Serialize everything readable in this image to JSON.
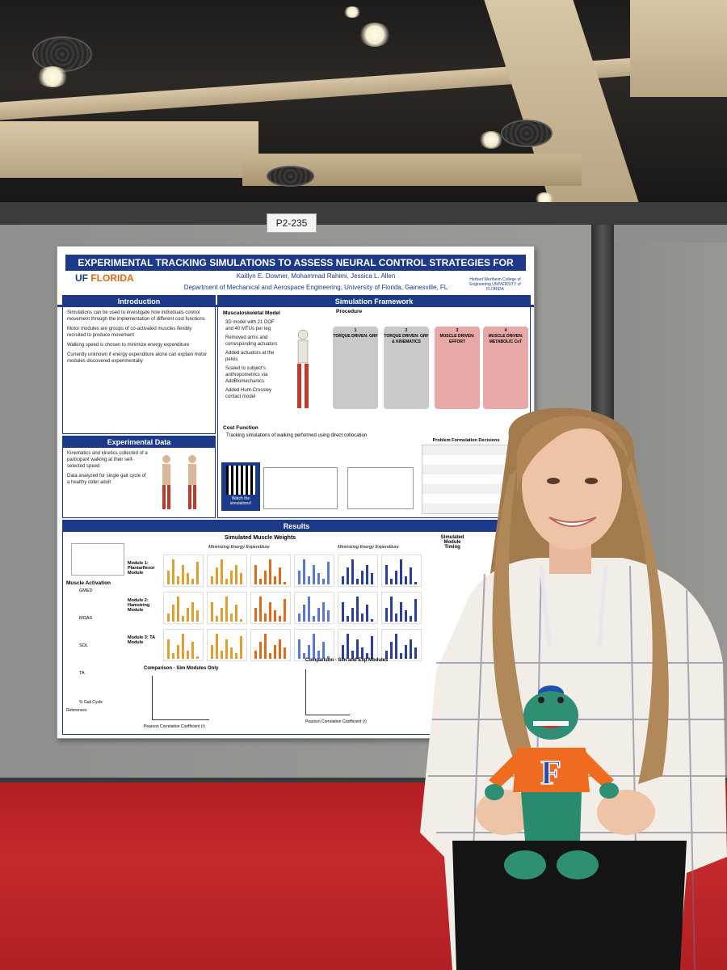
{
  "booth": {
    "number": "P2-235"
  },
  "poster": {
    "title": "EXPERIMENTAL TRACKING SIMULATIONS TO ASSESS NEURAL CONTROL STRATEGIES FOR GAIT",
    "authors": "Kaitlyn E. Downer, Mohammad Rahimi, Jessica L. Allen",
    "department": "Department of Mechanical and Aerospace Engineering, University of Florida, Gainesville, FL",
    "logo_uf": "UF",
    "logo_florida": "FLORIDA",
    "college": "Herbert Wertheim College of Engineering UNIVERSITY of FLORIDA",
    "intro_title": "Introduction",
    "intro_items": [
      "Simulations can be used to investigate how individuals control movement through the implementation of different cost functions",
      "Motor modules are groups of co-activated muscles flexibly recruited to produce movement",
      "Walking speed is chosen to minimize energy expenditure",
      "Currently unknown if energy expenditure alone can explain motor modules discovered experimentally"
    ],
    "expdata_title": "Experimental Data",
    "expdata_items": [
      "Kinematics and kinetics collected of a participant walking at their self-selected speed",
      "Data analyzed for single gait cycle of a healthy older adult"
    ],
    "sim_title": "Simulation Framework",
    "sim_model_title": "Musculoskeletal Model",
    "sim_model_items": [
      "3D model with 21 DOF and 40 MTUs per leg",
      "Removed arms and corresponding actuators",
      "Added actuators at the pelvis",
      "Scaled to subject's anthropometrics via AddBiomechanics",
      "Added Hunt-Crossley contact model"
    ],
    "procedure_title": "Procedure",
    "stages": [
      {
        "num": "1",
        "label": "TORQUE DRIVEN: GRF"
      },
      {
        "num": "2",
        "label": "TORQUE DRIVEN: GRF & KINEMATICS"
      },
      {
        "num": "3",
        "label": "MUSCLE DRIVEN: EFFORT"
      },
      {
        "num": "4",
        "label": "MUSCLE DRIVEN: METABOLIC CoT"
      }
    ],
    "cost_title": "Cost Function",
    "cost_text": "Tracking simulations of walking performed using direct collocation",
    "watch": "Watch the simulations!",
    "decisions_title": "Problem Formulation Decisions",
    "results_title": "Results",
    "weights_title": "Simulated Muscle Weights",
    "min_energy": "Minimizing Energy Expenditure",
    "modules": [
      "Module 1: Plantarflexor Module",
      "Module 2: Hamstring Module",
      "Module 3: TA Module"
    ],
    "activation_title": "Muscle Activation",
    "muscles": [
      "GMED",
      "MGAS",
      "SOL",
      "TA"
    ],
    "gait_axis": "% Gait Cycle",
    "comparison_sim": "Comparison - Sim Modules Only",
    "comparison_exp": "Comparison - Sim and Exp Modules",
    "pearson": "Pearson Correlation Coefficient (r)",
    "timing_title": "Simulated Module Timing",
    "references": "References"
  }
}
